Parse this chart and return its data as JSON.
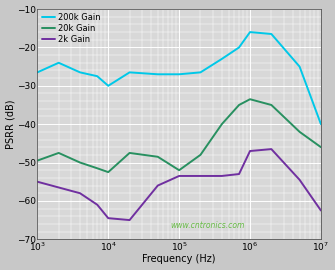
{
  "xlabel": "Frequency (Hz)",
  "ylabel": "PSRR (dB)",
  "xlim": [
    1000,
    10000000
  ],
  "ylim": [
    -70,
    -10
  ],
  "yticks": [
    -70,
    -60,
    -50,
    -40,
    -30,
    -20,
    -10
  ],
  "plot_bg": "#d8d8d8",
  "fig_bg": "#c8c8c8",
  "watermark": "www.cntronics.com",
  "watermark_color": "#66bb44",
  "grid_color": "#b8b8b8",
  "grid_major_lw": 0.7,
  "grid_minor_lw": 0.35,
  "series": [
    {
      "label": "200k Gain",
      "color": "#00c8e8",
      "lw": 1.4,
      "freq": [
        1000,
        2000,
        4000,
        7000,
        10000,
        20000,
        50000,
        100000,
        200000,
        400000,
        700000,
        1000000,
        2000000,
        5000000,
        10000000
      ],
      "psrr": [
        -26.5,
        -24.0,
        -26.5,
        -27.5,
        -30.0,
        -26.5,
        -27.0,
        -27.0,
        -26.5,
        -23.0,
        -20.0,
        -16.0,
        -16.5,
        -25.0,
        -40.0
      ]
    },
    {
      "label": "20k Gain",
      "color": "#289060",
      "lw": 1.4,
      "freq": [
        1000,
        2000,
        4000,
        7000,
        10000,
        20000,
        50000,
        100000,
        200000,
        400000,
        700000,
        1000000,
        2000000,
        5000000,
        10000000
      ],
      "psrr": [
        -49.5,
        -47.5,
        -50.0,
        -51.5,
        -52.5,
        -47.5,
        -48.5,
        -52.0,
        -48.0,
        -40.0,
        -35.0,
        -33.5,
        -35.0,
        -42.0,
        -46.0
      ]
    },
    {
      "label": "2k Gain",
      "color": "#7030a0",
      "lw": 1.4,
      "freq": [
        1000,
        2000,
        4000,
        7000,
        10000,
        20000,
        50000,
        100000,
        200000,
        400000,
        700000,
        1000000,
        2000000,
        5000000,
        10000000
      ],
      "psrr": [
        -55.0,
        -56.5,
        -58.0,
        -61.0,
        -64.5,
        -65.0,
        -56.0,
        -53.5,
        -53.5,
        -53.5,
        -53.0,
        -47.0,
        -46.5,
        -54.5,
        -62.5
      ]
    }
  ]
}
